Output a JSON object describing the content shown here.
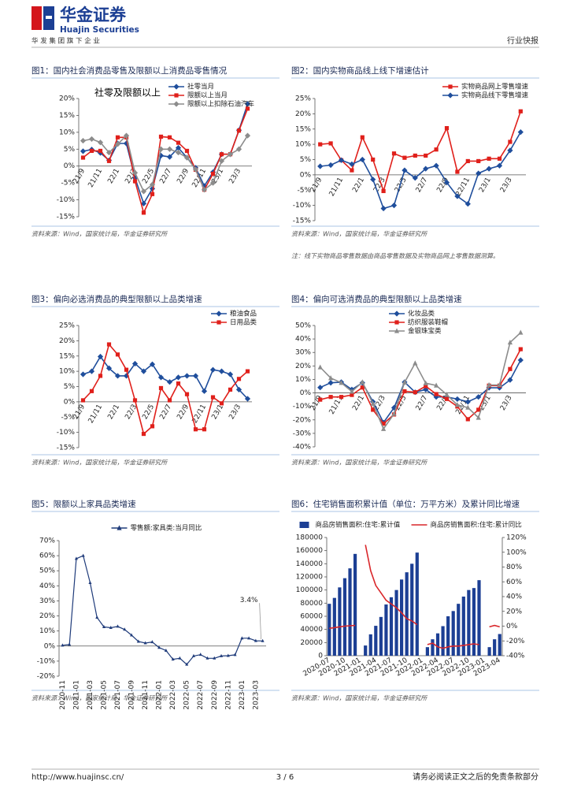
{
  "header": {
    "company_cn": "华金证券",
    "company_en": "Huajin Securities",
    "slogan": "华 发 集 团 旗 下 企 业",
    "report_type": "行业快报"
  },
  "footer": {
    "url": "http://www.huajinsc.cn/",
    "page": "3 / 6",
    "disclaimer": "请务必阅读正文之后的免责条款部分"
  },
  "chart_data": [
    {
      "type": "line",
      "title": "图1：国内社会消费品零售及限额以上消费品零售情况",
      "source": "资料来源：Wind，国家统计局，华金证券研究所",
      "annotation": "社零及限额以上",
      "categories": [
        "21/9",
        null,
        "21/11",
        null,
        "22/1",
        null,
        "22/3",
        null,
        "22/5",
        null,
        "22/7",
        null,
        "22/9",
        null,
        "22/11",
        null,
        "23/1",
        null,
        "23/3",
        null
      ],
      "series": [
        {
          "name": "社零当月",
          "color": "#1f4e9c",
          "marker": "diamond",
          "values": [
            4.4,
            4.9,
            3.9,
            1.7,
            6.7,
            6.7,
            -3.5,
            -11.1,
            -6.7,
            3.1,
            2.7,
            5.4,
            2.5,
            -0.5,
            -5.9,
            -1.8,
            3.5,
            3.5,
            10.6,
            18.4
          ]
        },
        {
          "name": "限额以上当月",
          "color": "#e0201b",
          "marker": "square",
          "values": [
            2.5,
            4.5,
            4.5,
            1.5,
            8.5,
            8.5,
            -4.5,
            -13.8,
            -8.3,
            8.7,
            8.5,
            6.9,
            4.5,
            -1.1,
            -7.0,
            -2.3,
            3.5,
            3.5,
            10.5,
            17.0
          ]
        },
        {
          "name": "限额以上扣除石油汽车",
          "color": "#8c8c8c",
          "marker": "diamond",
          "values": [
            7.5,
            8.0,
            7.0,
            4.0,
            6.5,
            9.0,
            -2.0,
            -7.5,
            -5.5,
            5.0,
            5.0,
            4.0,
            2.5,
            -1.0,
            -7.0,
            -5.0,
            1.5,
            3.5,
            5.0,
            9.0
          ]
        }
      ],
      "ylim": [
        -15,
        20
      ],
      "yticks": [
        {
          "value": -15,
          "label": "-15%"
        },
        {
          "value": -10,
          "label": "-10%"
        },
        {
          "value": -5,
          "label": "-5%"
        },
        {
          "value": 0,
          "label": "0%"
        },
        {
          "value": 5,
          "label": "5%"
        },
        {
          "value": 10,
          "label": "10%"
        },
        {
          "value": 15,
          "label": "15%"
        },
        {
          "value": 20,
          "label": "20%"
        }
      ],
      "grid": false,
      "legend": "upper right"
    },
    {
      "type": "line",
      "title": "图2：国内实物商品线上线下增速估计",
      "source": "资料来源：Wind，国家统计局，华金证券研究所",
      "note": "注：线下实物商品零售数据由商品零售数据及实物商品网上零售数据测算。",
      "categories": [
        "21/9",
        null,
        "21/11",
        null,
        "22/1",
        null,
        "22/3",
        null,
        "22/5",
        null,
        "22/7",
        null,
        "22/9",
        null,
        "22/11",
        null,
        "23/1",
        null,
        "23/3",
        null
      ],
      "series": [
        {
          "name": "实物商品网上零售增速",
          "color": "#e0201b",
          "marker": "square",
          "values": [
            10,
            10.3,
            4.8,
            1.5,
            12.3,
            5.0,
            -5.3,
            7.0,
            5.6,
            6.3,
            6.3,
            8.3,
            15.3,
            1.0,
            4.5,
            4.5,
            5.3,
            5.3,
            10.8,
            20.8
          ]
        },
        {
          "name": "实物商品线下零售增速",
          "color": "#1f4e9c",
          "marker": "diamond",
          "values": [
            2.8,
            3.2,
            4.8,
            3.5,
            5.0,
            -1.5,
            -11.0,
            -10.0,
            1.5,
            -1.0,
            2.0,
            3.0,
            -2.5,
            -7.0,
            -9.5,
            0.5,
            2.0,
            3.0,
            8.0,
            14.0
          ]
        }
      ],
      "ylim": [
        -15,
        25
      ],
      "yticks": [
        {
          "value": -15,
          "label": "-15%"
        },
        {
          "value": -10,
          "label": "-10%"
        },
        {
          "value": -5,
          "label": "-5%"
        },
        {
          "value": 0,
          "label": "0%"
        },
        {
          "value": 5,
          "label": "5%"
        },
        {
          "value": 10,
          "label": "10%"
        },
        {
          "value": 15,
          "label": "15%"
        },
        {
          "value": 20,
          "label": "20%"
        },
        {
          "value": 25,
          "label": "25%"
        }
      ],
      "grid": false,
      "legend": "upper right"
    },
    {
      "type": "line",
      "title": "图3：偏向必选消费品的典型限额以上品类增速",
      "source": "资料来源：Wind，国家统计局，华金证券研究所",
      "categories": [
        "21/9",
        null,
        "21/11",
        null,
        "22/1",
        null,
        "22/3",
        null,
        "22/5",
        null,
        "22/7",
        null,
        "22/9",
        null,
        "22/11",
        null,
        "23/1",
        null,
        "23/3",
        null
      ],
      "series": [
        {
          "name": "粮油食品",
          "color": "#1f4e9c",
          "marker": "diamond",
          "values": [
            9.0,
            10.0,
            14.8,
            11.0,
            8.5,
            8.5,
            12.5,
            10.0,
            12.3,
            8.0,
            6.5,
            8.0,
            8.5,
            8.5,
            3.5,
            10.5,
            10.0,
            9.0,
            4.0,
            1.0
          ]
        },
        {
          "name": "日用品类",
          "color": "#e0201b",
          "marker": "square",
          "values": [
            0.5,
            3.5,
            8.5,
            18.8,
            15.5,
            10.5,
            0.5,
            -10.5,
            -8.0,
            4.5,
            0.5,
            6.0,
            2.5,
            -9.0,
            -9.0,
            1.5,
            -0.5,
            4.0,
            7.5,
            10.0
          ]
        }
      ],
      "ylim": [
        -15,
        25
      ],
      "yticks": [
        {
          "value": -15,
          "label": "-15%"
        },
        {
          "value": -10,
          "label": "-10%"
        },
        {
          "value": -5,
          "label": "-5%"
        },
        {
          "value": 0,
          "label": "0%"
        },
        {
          "value": 5,
          "label": "5%"
        },
        {
          "value": 10,
          "label": "10%"
        },
        {
          "value": 15,
          "label": "15%"
        },
        {
          "value": 20,
          "label": "20%"
        },
        {
          "value": 25,
          "label": "25%"
        }
      ],
      "grid": false,
      "legend": "upper right"
    },
    {
      "type": "line",
      "title": "图4：偏向可选消费品的典型限额以上品类增速",
      "source": "资料来源：Wind，国家统计局，华金证券研究所",
      "categories": [
        "21/9",
        null,
        "21/11",
        null,
        "22/1",
        null,
        "22/3",
        null,
        "22/5",
        null,
        "22/7",
        null,
        "22/9",
        null,
        "22/11",
        null,
        "23/1",
        null,
        "23/3",
        null
      ],
      "series": [
        {
          "name": "化妆品类",
          "color": "#1f4e9c",
          "marker": "diamond",
          "values": [
            4,
            7.5,
            8,
            2.5,
            7.5,
            -6.5,
            -22,
            -11,
            8,
            0.5,
            2.5,
            -3,
            -3,
            -4.6,
            -6.6,
            -3,
            3.8,
            3.8,
            9.6,
            24.3
          ]
        },
        {
          "name": "纺织服装鞋帽",
          "color": "#e0201b",
          "marker": "square",
          "values": [
            -5,
            -3,
            -3,
            -1.5,
            4,
            -12.5,
            -22.8,
            -16,
            1.2,
            0.5,
            5,
            -0.9,
            -4.5,
            -10.1,
            -19.5,
            -12.5,
            5.4,
            5.4,
            17.7,
            32.4
          ]
        },
        {
          "name": "金银珠宝类",
          "color": "#8c8c8c",
          "marker": "triangle",
          "values": [
            19,
            11,
            7.5,
            1,
            8,
            -8,
            -26.7,
            -15.5,
            7.8,
            22,
            7.2,
            5.5,
            -1.3,
            -8.9,
            -10.9,
            -18.4,
            5.9,
            5.9,
            37.4,
            44.7
          ]
        }
      ],
      "ylim": [
        -40,
        50
      ],
      "yticks": [
        {
          "value": -40,
          "label": "-40%"
        },
        {
          "value": -30,
          "label": "-30%"
        },
        {
          "value": -20,
          "label": "-20%"
        },
        {
          "value": -10,
          "label": "-10%"
        },
        {
          "value": 0,
          "label": "0%"
        },
        {
          "value": 10,
          "label": "10%"
        },
        {
          "value": 20,
          "label": "20%"
        },
        {
          "value": 30,
          "label": "30%"
        },
        {
          "value": 40,
          "label": "40%"
        },
        {
          "value": 50,
          "label": "50%"
        }
      ],
      "grid": false,
      "legend": "upper center"
    },
    {
      "type": "line",
      "title": "图5：限额以上家具品类增速",
      "source": "资料来源：Wind，国家统计局，华金证券研究所",
      "annotation": "3.4%",
      "categories": [
        "2020-11",
        null,
        "2021-01",
        null,
        "2021-03",
        null,
        "2021-05",
        null,
        "2021-07",
        null,
        "2021-09",
        null,
        "2021-11",
        null,
        "2022-01",
        null,
        "2022-03",
        null,
        "2022-05",
        null,
        "2022-07",
        null,
        "2022-09",
        null,
        "2022-11",
        null,
        "2023-01",
        null,
        "2023-03",
        null
      ],
      "series": [
        {
          "name": "零售额:家具类:当月同比",
          "color": "#1f3b7a",
          "marker": "triangle",
          "values": [
            0.5,
            1.0,
            58.0,
            60.0,
            42.0,
            19.0,
            12.7,
            12.2,
            13.0,
            11.0,
            7.2,
            3.0,
            2.0,
            2.7,
            -1.0,
            -3.0,
            -8.8,
            -8.1,
            -12.2,
            -6.6,
            -5.7,
            -8.1,
            -8.1,
            -6.6,
            -6.4,
            -5.8,
            5.2,
            5.2,
            3.5,
            3.4
          ]
        }
      ],
      "ylim": [
        -20,
        70
      ],
      "yticks": [
        {
          "value": -20,
          "label": "-20%"
        },
        {
          "value": -10,
          "label": "-10%"
        },
        {
          "value": 0,
          "label": "0%"
        },
        {
          "value": 10,
          "label": "10%"
        },
        {
          "value": 20,
          "label": "20%"
        },
        {
          "value": 30,
          "label": "30%"
        },
        {
          "value": 40,
          "label": "40%"
        },
        {
          "value": 50,
          "label": "50%"
        },
        {
          "value": 60,
          "label": "60%"
        },
        {
          "value": 70,
          "label": "70%"
        }
      ],
      "grid": false,
      "legend": "top"
    },
    {
      "type": "bar",
      "title": "图6：住宅销售面积累计值（单位：万平方米）及累计同比增速",
      "source": "资料来源：Wind，国家统计局，华金证券研究所",
      "categories": [
        "2020-07",
        null,
        null,
        "2020-10",
        null,
        null,
        "2021-01",
        null,
        null,
        "2021-04",
        null,
        null,
        "2021-07",
        null,
        null,
        "2021-10",
        null,
        null,
        "2022-01",
        null,
        null,
        "2022-04",
        null,
        null,
        "2022-07",
        null,
        null,
        "2022-10",
        null,
        null,
        "2023-01",
        null,
        null,
        "2023-04"
      ],
      "series": [
        {
          "name": "商品房销售面积:住宅:累计值",
          "color": "#1c3f94",
          "type": "bar",
          "values": [
            79000,
            88000,
            104000,
            118000,
            133000,
            155000,
            null,
            15500,
            32500,
            45500,
            59000,
            78000,
            89000,
            100000,
            116000,
            127000,
            140000,
            157000,
            null,
            13000,
            25000,
            34000,
            45000,
            60000,
            68000,
            79000,
            90000,
            100000,
            103000,
            115000,
            null,
            13000,
            25000,
            33000
          ]
        },
        {
          "name": "商品房销售面积:住宅:累计同比",
          "color": "#d9262a",
          "type": "line",
          "marker": "none",
          "axis": "y2",
          "values": [
            -3,
            -2,
            -1,
            0,
            0.5,
            1.0,
            null,
            110,
            75,
            55,
            45,
            35,
            30,
            25,
            18,
            10,
            7,
            2,
            null,
            -25,
            -23,
            -28,
            -30,
            -28,
            -27,
            -27,
            -26,
            -25,
            -24,
            -25,
            null,
            -1,
            1,
            -1
          ]
        }
      ],
      "ylim": [
        0,
        180000
      ],
      "yticks": [
        0,
        20000,
        40000,
        60000,
        80000,
        100000,
        120000,
        140000,
        160000,
        180000
      ],
      "y2lim": [
        -40,
        120
      ],
      "y2ticks": [
        {
          "value": -40,
          "label": "-40%"
        },
        {
          "value": -20,
          "label": "-20%"
        },
        {
          "value": 0,
          "label": "0%"
        },
        {
          "value": 20,
          "label": "20%"
        },
        {
          "value": 40,
          "label": "40%"
        },
        {
          "value": 60,
          "label": "60%"
        },
        {
          "value": 80,
          "label": "80%"
        },
        {
          "value": 100,
          "label": "100%"
        },
        {
          "value": 120,
          "label": "120%"
        }
      ],
      "grid": false,
      "legend": "top"
    }
  ]
}
